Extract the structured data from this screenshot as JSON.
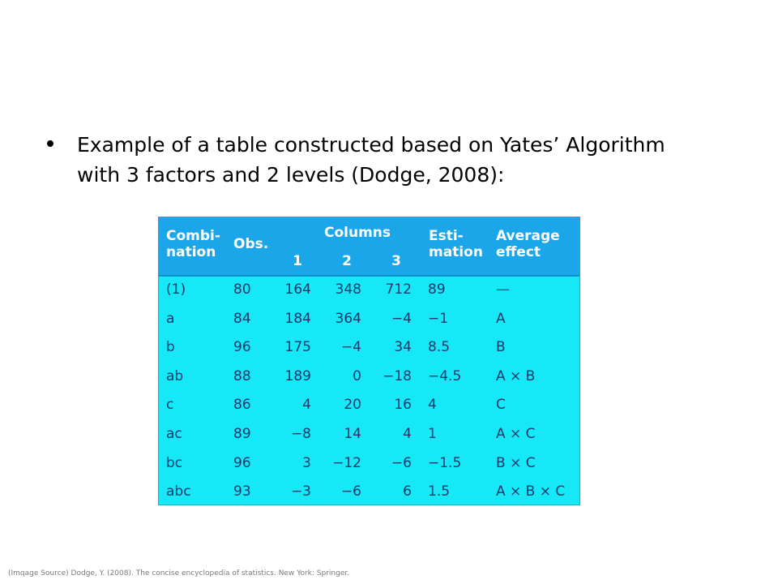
{
  "bullet": {
    "line1": "Example of a table constructed based on Yates’ Algorithm",
    "line2": "with 3 factors and 2 levels (Dodge, 2008):"
  },
  "table": {
    "headers": {
      "combination_1": "Combi-",
      "combination_2": "nation",
      "obs": "Obs.",
      "columns": "Columns",
      "col1": "1",
      "col2": "2",
      "col3": "3",
      "estimation_1": "Esti-",
      "estimation_2": "mation",
      "effect_1": "Average",
      "effect_2": "effect"
    },
    "rows": [
      {
        "comb": "(1)",
        "obs": "80",
        "c1": "164",
        "c2": "348",
        "c3": "712",
        "est": "89",
        "eff": "—"
      },
      {
        "comb": "a",
        "obs": "84",
        "c1": "184",
        "c2": "364",
        "c3": "−4",
        "est": "−1",
        "eff": "A"
      },
      {
        "comb": "b",
        "obs": "96",
        "c1": "175",
        "c2": "−4",
        "c3": "34",
        "est": "8.5",
        "eff": "B"
      },
      {
        "comb": "ab",
        "obs": "88",
        "c1": "189",
        "c2": "0",
        "c3": "−18",
        "est": "−4.5",
        "eff": "A × B"
      },
      {
        "comb": "c",
        "obs": "86",
        "c1": "4",
        "c2": "20",
        "c3": "16",
        "est": "4",
        "eff": "C"
      },
      {
        "comb": "ac",
        "obs": "89",
        "c1": "−8",
        "c2": "14",
        "c3": "4",
        "est": "1",
        "eff": "A × C"
      },
      {
        "comb": "bc",
        "obs": "96",
        "c1": "3",
        "c2": "−12",
        "c3": "−6",
        "est": "−1.5",
        "eff": "B × C"
      },
      {
        "comb": "abc",
        "obs": "93",
        "c1": "−3",
        "c2": "−6",
        "c3": "6",
        "est": "1.5",
        "eff": "A × B × C"
      }
    ]
  },
  "footer": "(Imqage Source) Dodge, Y. (2008). The concise encyclopedia of statistics. New York: Springer."
}
